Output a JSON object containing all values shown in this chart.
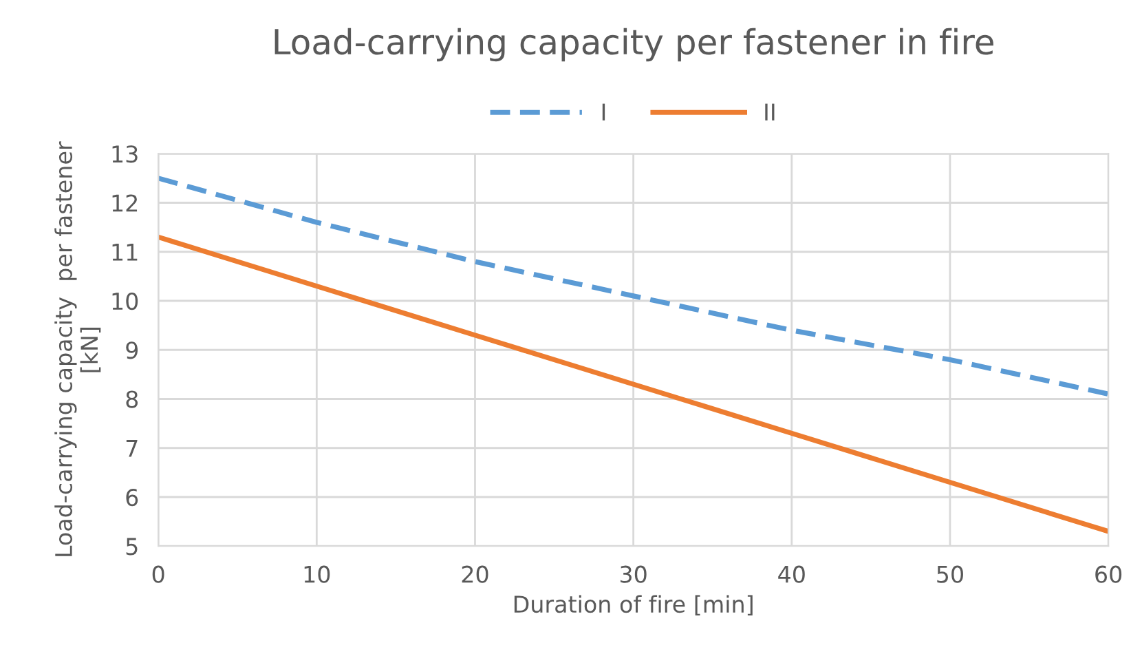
{
  "chart_data": {
    "type": "line",
    "title": "Load-carrying capacity per fastener in fire",
    "xlabel": "Duration of fire [min]",
    "ylabel": "Load-carrying capacity  per fastener\n[kN]",
    "x": [
      0,
      10,
      20,
      30,
      40,
      50,
      60
    ],
    "series": [
      {
        "name": "I",
        "color": "#5b9bd5",
        "line_style": "dashed",
        "values": [
          12.5,
          11.6,
          10.8,
          10.1,
          9.4,
          8.8,
          8.1
        ]
      },
      {
        "name": "II",
        "color": "#ed7d31",
        "line_style": "solid",
        "values": [
          11.3,
          10.3,
          9.3,
          8.3,
          7.3,
          6.3,
          5.3
        ]
      }
    ],
    "xlim": [
      0,
      60
    ],
    "xticks": [
      0,
      10,
      20,
      30,
      40,
      50,
      60
    ],
    "ylim": [
      5,
      13
    ],
    "yticks": [
      5,
      6,
      7,
      8,
      9,
      10,
      11,
      12,
      13
    ],
    "grid": true,
    "legend": "top",
    "marker": "none"
  }
}
